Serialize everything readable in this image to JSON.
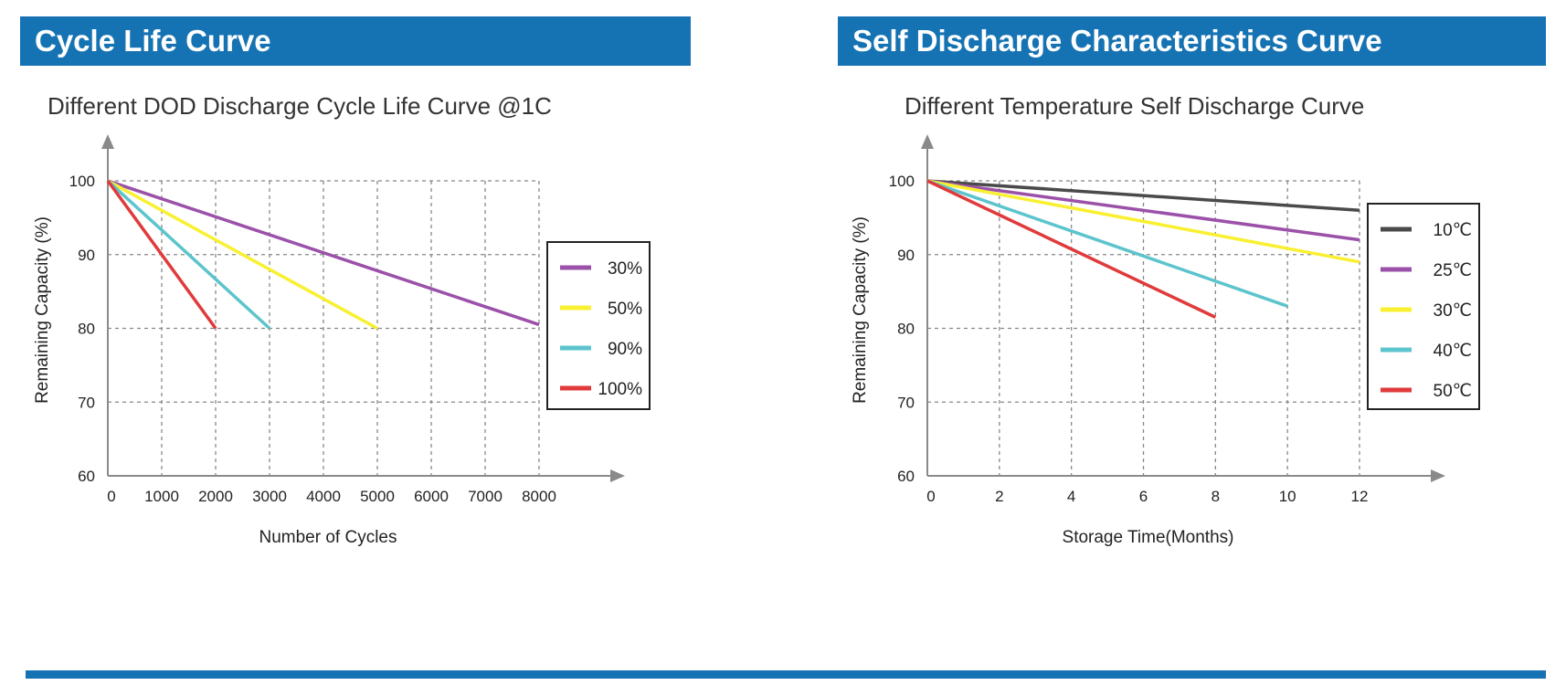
{
  "panels": [
    {
      "header": "Cycle Life Curve"
    },
    {
      "header": "Self Discharge Characteristics Curve"
    }
  ],
  "chart_data": [
    {
      "type": "line",
      "title": "Different DOD Discharge Cycle Life Curve @1C",
      "xlabel": "Number of Cycles",
      "ylabel": "Remaining Capacity (%)",
      "xlim": [
        0,
        8000
      ],
      "ylim": [
        60,
        100
      ],
      "xticks": [
        0,
        1000,
        2000,
        3000,
        4000,
        5000,
        6000,
        7000,
        8000
      ],
      "xtick_labels": [
        "0",
        "1000",
        "2000",
        "3000",
        "4000",
        "5000",
        "6000",
        "7000",
        "8000"
      ],
      "yticks": [
        60,
        70,
        80,
        90,
        100
      ],
      "ytick_labels": [
        "60",
        "70",
        "80",
        "90",
        "100"
      ],
      "grid": true,
      "legend_position": "right",
      "series": [
        {
          "name": "30%",
          "color": "#9b51a8",
          "x": [
            0,
            8000
          ],
          "y": [
            100,
            80.5
          ]
        },
        {
          "name": "50%",
          "color": "#f8f030",
          "x": [
            0,
            5000
          ],
          "y": [
            100,
            80
          ]
        },
        {
          "name": "90%",
          "color": "#5cc4cc",
          "x": [
            0,
            3000
          ],
          "y": [
            100,
            80
          ]
        },
        {
          "name": "100%",
          "color": "#e03a3a",
          "x": [
            0,
            2000
          ],
          "y": [
            100,
            80
          ]
        }
      ]
    },
    {
      "type": "line",
      "title": "Different Temperature Self Discharge Curve",
      "xlabel": "Storage Time(Months)",
      "ylabel": "Remaining Capacity (%)",
      "xlim": [
        0,
        12
      ],
      "ylim": [
        60,
        100
      ],
      "xticks": [
        0,
        2,
        4,
        6,
        8,
        10,
        12
      ],
      "xtick_labels": [
        "0",
        "2",
        "4",
        "6",
        "8",
        "10",
        "12"
      ],
      "yticks": [
        60,
        70,
        80,
        90,
        100
      ],
      "ytick_labels": [
        "60",
        "70",
        "80",
        "90",
        "100"
      ],
      "grid": true,
      "legend_position": "right",
      "series": [
        {
          "name": "10℃",
          "color": "#4a4a4a",
          "x": [
            0,
            12
          ],
          "y": [
            100,
            96
          ]
        },
        {
          "name": "25℃",
          "color": "#9b51a8",
          "x": [
            0,
            12
          ],
          "y": [
            100,
            92
          ]
        },
        {
          "name": "30℃",
          "color": "#f8f030",
          "x": [
            0,
            12
          ],
          "y": [
            100,
            89
          ]
        },
        {
          "name": "40℃",
          "color": "#5cc4cc",
          "x": [
            0,
            10
          ],
          "y": [
            100,
            83
          ]
        },
        {
          "name": "50℃",
          "color": "#e03a3a",
          "x": [
            0,
            8
          ],
          "y": [
            100,
            81.5
          ]
        }
      ]
    }
  ]
}
